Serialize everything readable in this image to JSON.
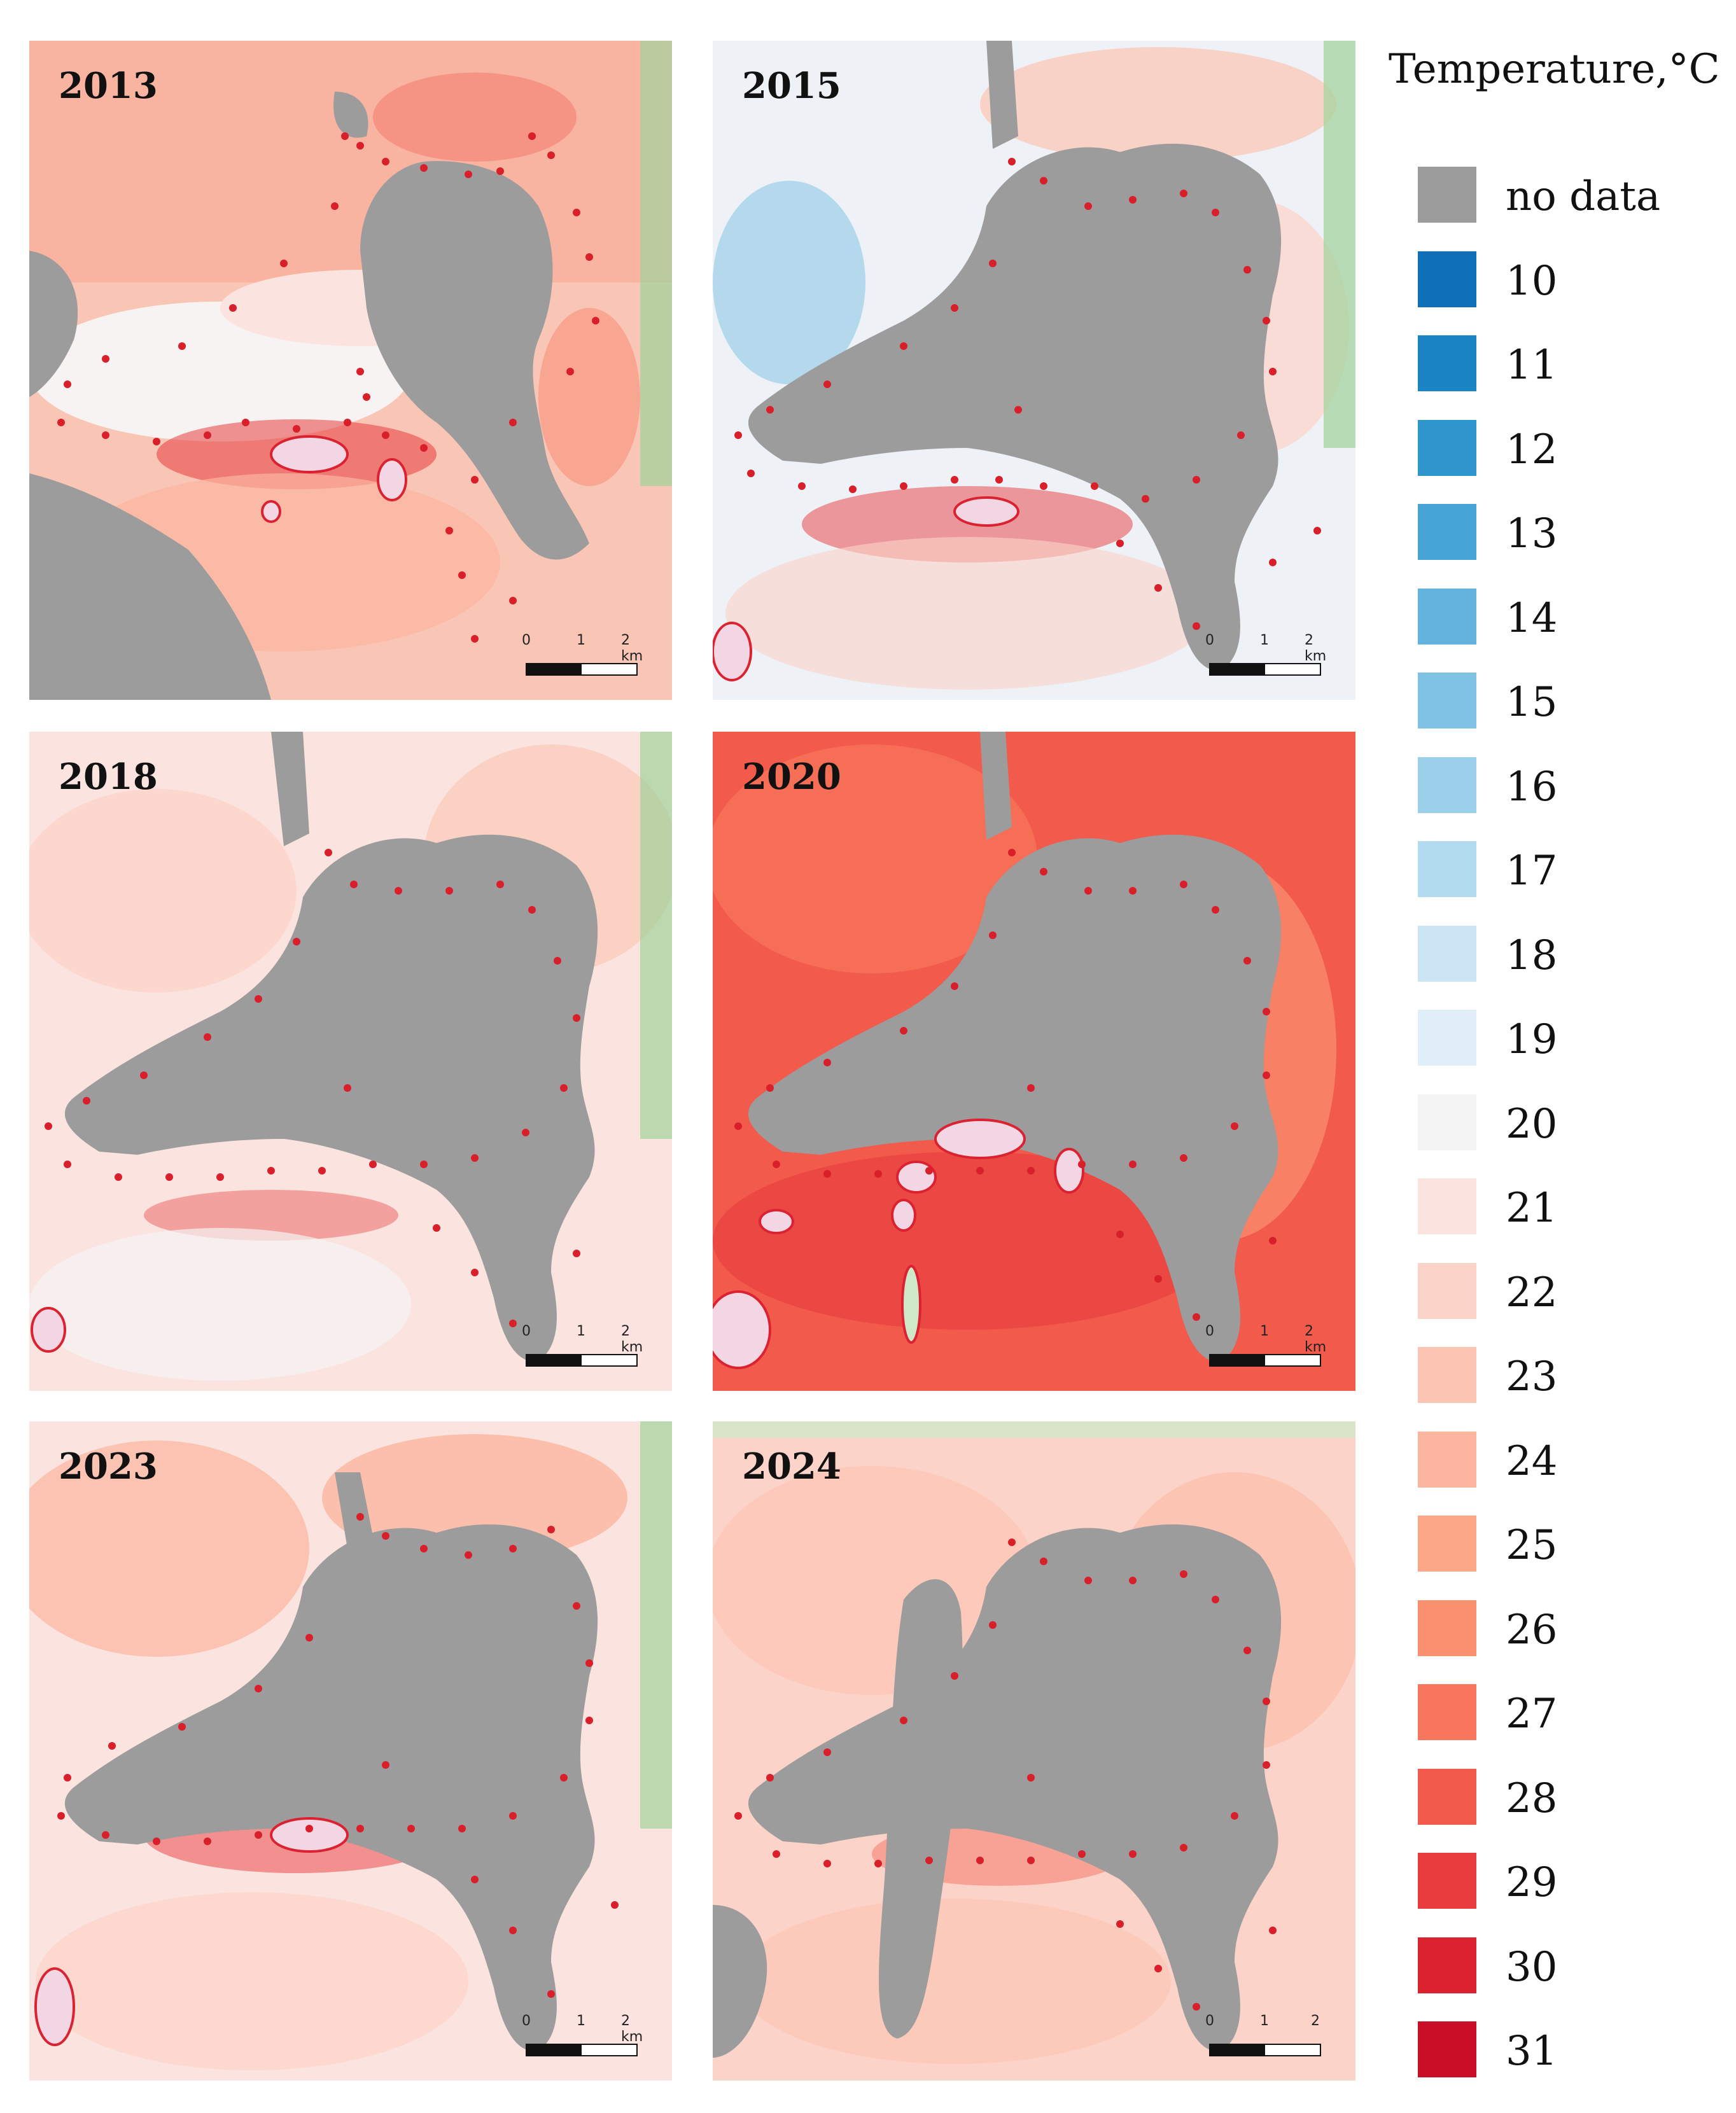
{
  "panels": [
    {
      "year": "2013",
      "scale": {
        "zero": "0",
        "one": "1",
        "two": "2 km"
      }
    },
    {
      "year": "2015",
      "scale": {
        "zero": "0",
        "one": "1",
        "two": "2 km"
      }
    },
    {
      "year": "2018",
      "scale": {
        "zero": "0",
        "one": "1",
        "two": "2 km"
      }
    },
    {
      "year": "2020",
      "scale": {
        "zero": "0",
        "one": "1",
        "two": "2 km"
      }
    },
    {
      "year": "2023",
      "scale": {
        "zero": "0",
        "one": "1",
        "two": "2 km"
      }
    },
    {
      "year": "2024",
      "scale": {
        "zero": "0",
        "one": "1",
        "two": "2"
      }
    }
  ],
  "legend": {
    "title": "Temperature,°C",
    "items": [
      {
        "label": "no data",
        "color": "#9c9c9c"
      },
      {
        "label": "10",
        "color": "#0f6fb8"
      },
      {
        "label": "11",
        "color": "#1b84c4"
      },
      {
        "label": "12",
        "color": "#2e95cd"
      },
      {
        "label": "13",
        "color": "#46a5d6"
      },
      {
        "label": "14",
        "color": "#62b3dd"
      },
      {
        "label": "15",
        "color": "#7fc2e4"
      },
      {
        "label": "16",
        "color": "#9bcfea"
      },
      {
        "label": "17",
        "color": "#b3dbef"
      },
      {
        "label": "18",
        "color": "#cbe5f4"
      },
      {
        "label": "19",
        "color": "#e0eef8"
      },
      {
        "label": "20",
        "color": "#f4f4f4"
      },
      {
        "label": "21",
        "color": "#fbe4df"
      },
      {
        "label": "22",
        "color": "#fcd3c8"
      },
      {
        "label": "23",
        "color": "#fcc4b3"
      },
      {
        "label": "24",
        "color": "#fcb59e"
      },
      {
        "label": "25",
        "color": "#fca688"
      },
      {
        "label": "26",
        "color": "#fb9070"
      },
      {
        "label": "27",
        "color": "#f8765b"
      },
      {
        "label": "28",
        "color": "#f25a4c"
      },
      {
        "label": "29",
        "color": "#e83c3e"
      },
      {
        "label": "30",
        "color": "#db2231"
      },
      {
        "label": "31",
        "color": "#c90f28"
      }
    ]
  }
}
